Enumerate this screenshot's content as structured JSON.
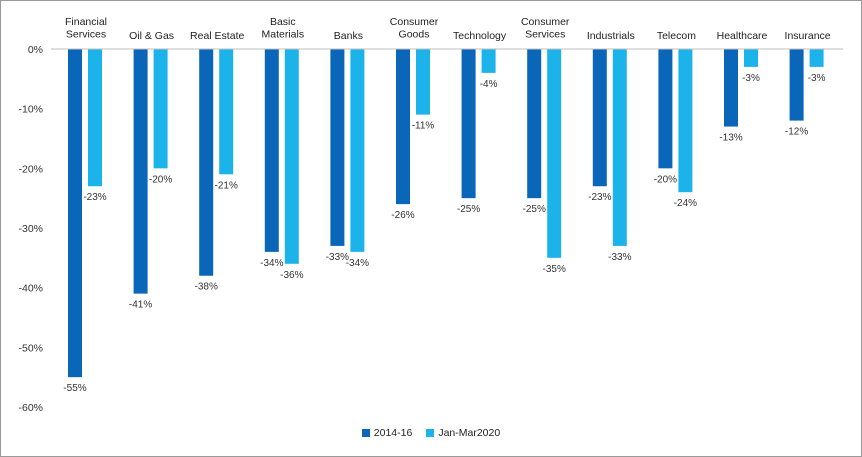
{
  "chart_data": {
    "type": "bar",
    "title": "",
    "xlabel": "",
    "ylabel": "",
    "categories": [
      [
        "Financial",
        "Services"
      ],
      [
        "Oil & Gas"
      ],
      [
        "Real Estate"
      ],
      [
        "Basic",
        "Materials"
      ],
      [
        "Banks"
      ],
      [
        "Consumer",
        "Goods"
      ],
      [
        "Technology"
      ],
      [
        "Consumer",
        "Services"
      ],
      [
        "Industrials"
      ],
      [
        "Telecom"
      ],
      [
        "Healthcare"
      ],
      [
        "Insurance"
      ]
    ],
    "series": [
      {
        "name": "2014-16",
        "color": "#0a66b8",
        "values": [
          -55,
          -41,
          -38,
          -34,
          -33,
          -26,
          -25,
          -25,
          -23,
          -20,
          -13,
          -12
        ],
        "labels": [
          "-55%",
          "-41%",
          "-38%",
          "-34%",
          "-33%",
          "-26%",
          "-25%",
          "-25%",
          "-23%",
          "-20%",
          "-13%",
          "-12%"
        ]
      },
      {
        "name": "Jan-Mar2020",
        "color": "#1cb3ea",
        "values": [
          -23,
          -20,
          -21,
          -36,
          -34,
          -11,
          -4,
          -35,
          -33,
          -24,
          -3,
          -3
        ],
        "labels": [
          "-23%",
          "-20%",
          "-21%",
          "-36%",
          "-34%",
          "-11%",
          "-4%",
          "-35%",
          "-33%",
          "-24%",
          "-3%",
          "-3%"
        ]
      }
    ],
    "ylim": [
      -60,
      0
    ],
    "yticks": [
      0,
      -10,
      -20,
      -30,
      -40,
      -50,
      -60
    ],
    "ytick_labels": [
      "0%",
      "-10%",
      "-20%",
      "-30%",
      "-40%",
      "-50%",
      "-60%"
    ],
    "grid": false,
    "legend_position": "bottom-center"
  }
}
